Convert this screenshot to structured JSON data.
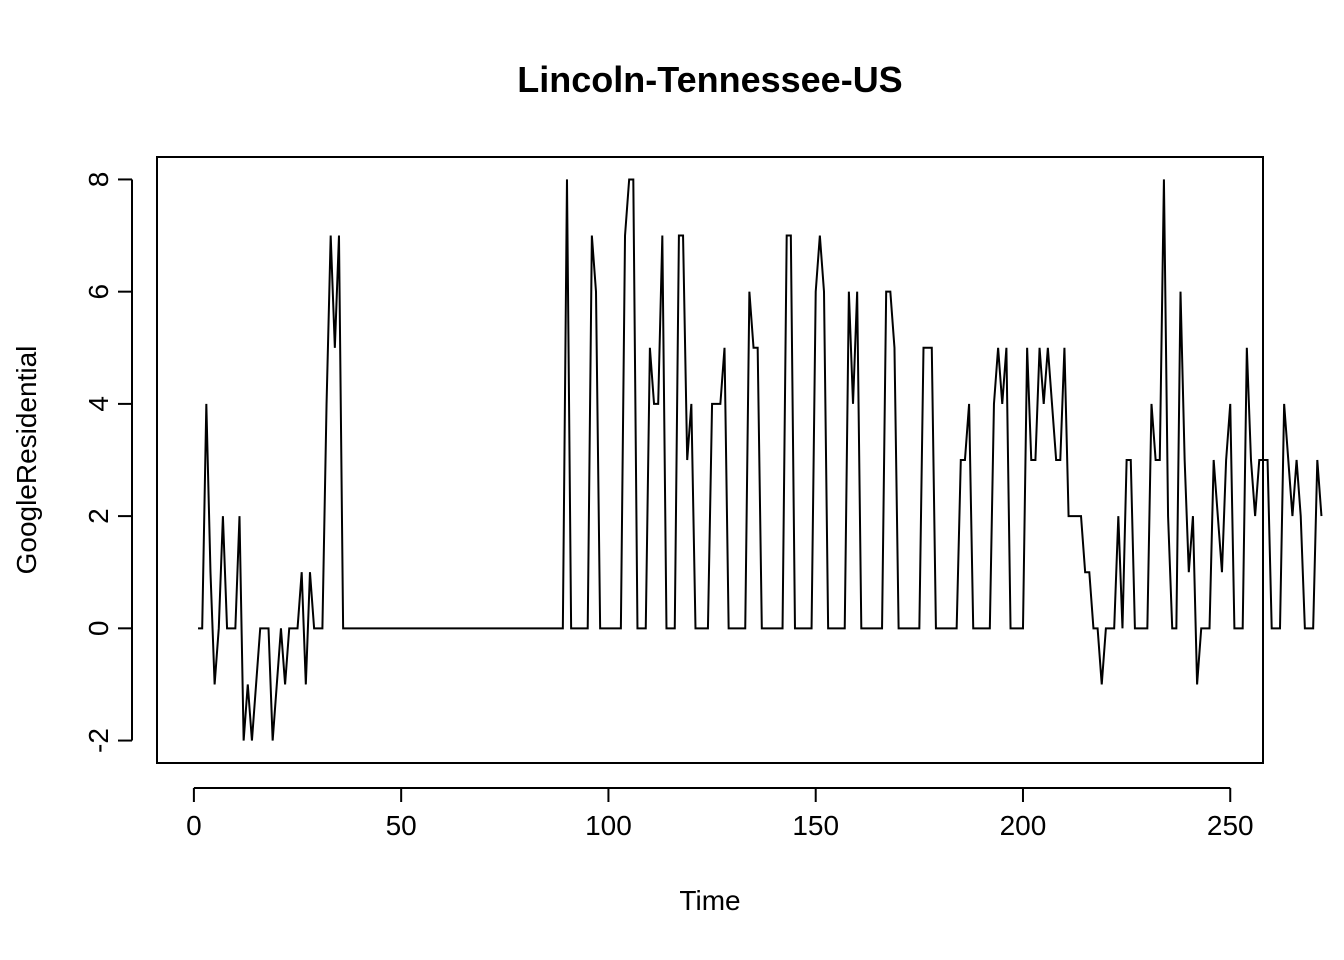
{
  "chart_data": {
    "type": "line",
    "title": "Lincoln-Tennessee-US",
    "xlabel": "Time",
    "ylabel": "GoogleResidential",
    "xlim": [
      -8.9,
      257.9
    ],
    "ylim": [
      -2.4,
      8.4
    ],
    "xticks": [
      0,
      50,
      100,
      150,
      200,
      250
    ],
    "yticks": [
      -2,
      0,
      2,
      4,
      6,
      8
    ],
    "x_start": 1,
    "series": [
      {
        "values": [
          0,
          0,
          4,
          1,
          -1,
          0,
          2,
          0,
          0,
          0,
          2,
          -2,
          -1,
          -2,
          -1,
          0,
          0,
          0,
          -2,
          -1,
          0,
          -1,
          0,
          0,
          0,
          1,
          -1,
          1,
          0,
          0,
          0,
          4,
          7,
          5,
          7,
          0,
          0,
          0,
          0,
          0,
          0,
          0,
          0,
          0,
          0,
          0,
          0,
          0,
          0,
          0,
          0,
          0,
          0,
          0,
          0,
          0,
          0,
          0,
          0,
          0,
          0,
          0,
          0,
          0,
          0,
          0,
          0,
          0,
          0,
          0,
          0,
          0,
          0,
          0,
          0,
          0,
          0,
          0,
          0,
          0,
          0,
          0,
          0,
          0,
          0,
          0,
          0,
          0,
          0,
          8,
          0,
          0,
          0,
          0,
          0,
          7,
          6,
          0,
          0,
          0,
          0,
          0,
          0,
          7,
          8,
          8,
          0,
          0,
          0,
          5,
          4,
          4,
          7,
          0,
          0,
          0,
          7,
          7,
          3,
          4,
          0,
          0,
          0,
          0,
          4,
          4,
          4,
          5,
          0,
          0,
          0,
          0,
          0,
          6,
          5,
          5,
          0,
          0,
          0,
          0,
          0,
          0,
          7,
          7,
          0,
          0,
          0,
          0,
          0,
          6,
          7,
          6,
          0,
          0,
          0,
          0,
          0,
          6,
          4,
          6,
          0,
          0,
          0,
          0,
          0,
          0,
          6,
          6,
          5,
          0,
          0,
          0,
          0,
          0,
          0,
          5,
          5,
          5,
          0,
          0,
          0,
          0,
          0,
          0,
          3,
          3,
          4,
          0,
          0,
          0,
          0,
          0,
          4,
          5,
          4,
          5,
          0,
          0,
          0,
          0,
          5,
          3,
          3,
          5,
          4,
          5,
          4,
          3,
          3,
          5,
          2,
          2,
          2,
          2,
          1,
          1,
          0,
          0,
          -1,
          0,
          0,
          0,
          2,
          0,
          3,
          3,
          0,
          0,
          0,
          0,
          4,
          3,
          3,
          8,
          2,
          0,
          0,
          6,
          3,
          1,
          2,
          -1,
          0,
          0,
          0,
          3,
          2,
          1,
          3,
          4,
          0,
          0,
          0,
          5,
          3,
          2,
          3,
          3,
          3,
          0,
          0,
          0,
          4,
          3,
          2,
          3,
          2,
          0,
          0,
          0,
          3,
          2
        ]
      }
    ]
  }
}
